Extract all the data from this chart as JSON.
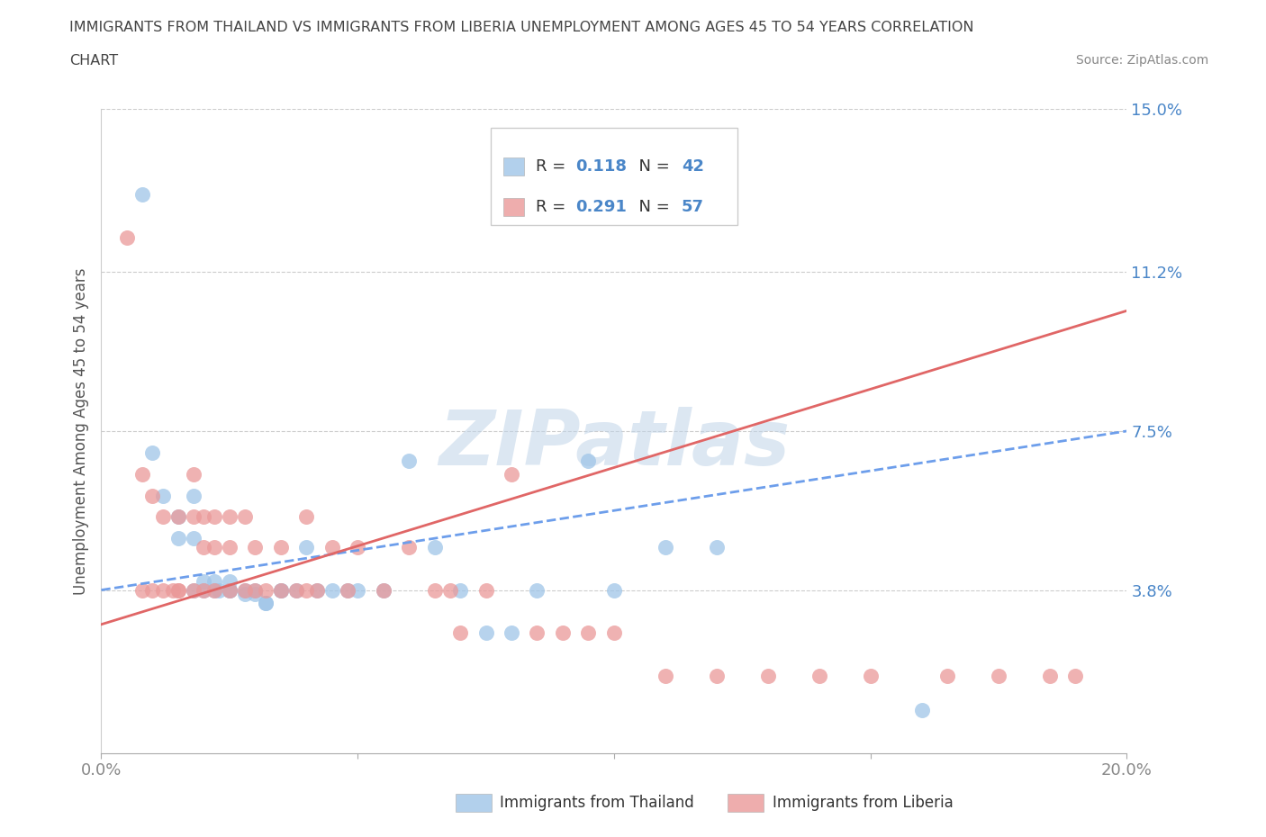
{
  "title_line1": "IMMIGRANTS FROM THAILAND VS IMMIGRANTS FROM LIBERIA UNEMPLOYMENT AMONG AGES 45 TO 54 YEARS CORRELATION",
  "title_line2": "CHART",
  "source": "Source: ZipAtlas.com",
  "ylabel": "Unemployment Among Ages 45 to 54 years",
  "xmin": 0.0,
  "xmax": 0.2,
  "ymin": 0.0,
  "ymax": 0.15,
  "yticks": [
    0.0,
    0.038,
    0.075,
    0.112,
    0.15
  ],
  "ytick_labels": [
    "",
    "3.8%",
    "7.5%",
    "11.2%",
    "15.0%"
  ],
  "xticks": [
    0.0,
    0.05,
    0.1,
    0.15,
    0.2
  ],
  "xtick_labels": [
    "0.0%",
    "",
    "",
    "",
    "20.0%"
  ],
  "legend_r_thailand": "0.118",
  "legend_n_thailand": "42",
  "legend_r_liberia": "0.291",
  "legend_n_liberia": "57",
  "color_thailand": "#9fc5e8",
  "color_liberia": "#ea9999",
  "color_thailand_line": "#6d9eeb",
  "color_liberia_line": "#e06666",
  "color_legend_text": "#4a86c8",
  "color_grid": "#cccccc",
  "color_title": "#444444",
  "color_ytick_labels": "#4a86c8",
  "watermark_color": "#c0d4e8",
  "thailand_scatter_x": [
    0.008,
    0.01,
    0.012,
    0.015,
    0.015,
    0.018,
    0.018,
    0.018,
    0.02,
    0.02,
    0.022,
    0.022,
    0.023,
    0.025,
    0.025,
    0.025,
    0.028,
    0.028,
    0.03,
    0.03,
    0.032,
    0.032,
    0.035,
    0.035,
    0.038,
    0.04,
    0.042,
    0.045,
    0.048,
    0.05,
    0.055,
    0.06,
    0.065,
    0.07,
    0.075,
    0.08,
    0.085,
    0.095,
    0.1,
    0.11,
    0.12,
    0.16
  ],
  "thailand_scatter_y": [
    0.13,
    0.07,
    0.06,
    0.05,
    0.055,
    0.05,
    0.06,
    0.038,
    0.038,
    0.04,
    0.04,
    0.038,
    0.038,
    0.038,
    0.04,
    0.038,
    0.037,
    0.038,
    0.037,
    0.038,
    0.035,
    0.035,
    0.038,
    0.038,
    0.038,
    0.048,
    0.038,
    0.038,
    0.038,
    0.038,
    0.038,
    0.068,
    0.048,
    0.038,
    0.028,
    0.028,
    0.038,
    0.068,
    0.038,
    0.048,
    0.048,
    0.01
  ],
  "liberia_scatter_x": [
    0.005,
    0.008,
    0.008,
    0.01,
    0.01,
    0.012,
    0.012,
    0.014,
    0.015,
    0.015,
    0.015,
    0.018,
    0.018,
    0.018,
    0.02,
    0.02,
    0.02,
    0.022,
    0.022,
    0.022,
    0.025,
    0.025,
    0.025,
    0.028,
    0.028,
    0.03,
    0.03,
    0.032,
    0.035,
    0.035,
    0.038,
    0.04,
    0.04,
    0.042,
    0.045,
    0.048,
    0.05,
    0.055,
    0.06,
    0.065,
    0.068,
    0.07,
    0.075,
    0.08,
    0.085,
    0.09,
    0.095,
    0.1,
    0.11,
    0.12,
    0.13,
    0.14,
    0.15,
    0.165,
    0.175,
    0.185,
    0.19
  ],
  "liberia_scatter_y": [
    0.12,
    0.065,
    0.038,
    0.06,
    0.038,
    0.055,
    0.038,
    0.038,
    0.055,
    0.038,
    0.038,
    0.065,
    0.055,
    0.038,
    0.055,
    0.048,
    0.038,
    0.055,
    0.048,
    0.038,
    0.055,
    0.048,
    0.038,
    0.055,
    0.038,
    0.048,
    0.038,
    0.038,
    0.048,
    0.038,
    0.038,
    0.055,
    0.038,
    0.038,
    0.048,
    0.038,
    0.048,
    0.038,
    0.048,
    0.038,
    0.038,
    0.028,
    0.038,
    0.065,
    0.028,
    0.028,
    0.028,
    0.028,
    0.018,
    0.018,
    0.018,
    0.018,
    0.018,
    0.018,
    0.018,
    0.018,
    0.018
  ],
  "thailand_trend_x0": 0.0,
  "thailand_trend_y0": 0.038,
  "thailand_trend_x1": 0.2,
  "thailand_trend_y1": 0.075,
  "liberia_trend_x0": 0.0,
  "liberia_trend_y0": 0.03,
  "liberia_trend_x1": 0.2,
  "liberia_trend_y1": 0.103
}
